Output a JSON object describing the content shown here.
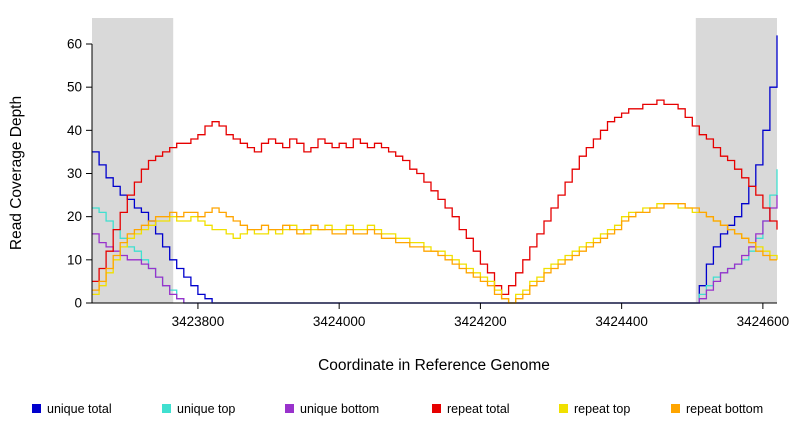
{
  "chart_data": {
    "type": "line",
    "title": "",
    "xlabel": "Coordinate in Reference Genome",
    "ylabel": "Read Coverage Depth",
    "xlim": [
      3423650,
      3424620
    ],
    "ylim": [
      0,
      60
    ],
    "x_ticks": [
      3423800,
      3424000,
      3424200,
      3424400,
      3424600
    ],
    "y_ticks": [
      0,
      10,
      20,
      30,
      40,
      50,
      60
    ],
    "x_start": 3423650,
    "x_step": 10,
    "line_style": "step",
    "grid": false,
    "legend_position": "bottom",
    "colors": {
      "background": "#ffffff",
      "shade": "#d9d9d9",
      "axis": "#000000"
    },
    "shaded_regions": [
      [
        3423650,
        3423765
      ],
      [
        3424505,
        3424620
      ]
    ],
    "series": [
      {
        "name": "unique total",
        "color": "#0000cd",
        "values": [
          35,
          32,
          29,
          27,
          25,
          24,
          22,
          21,
          19,
          16,
          13,
          10,
          8,
          6,
          4,
          2,
          1,
          0,
          0,
          0,
          0,
          0,
          0,
          0,
          0,
          0,
          0,
          0,
          0,
          0,
          0,
          0,
          0,
          0,
          0,
          0,
          0,
          0,
          0,
          0,
          0,
          0,
          0,
          0,
          0,
          0,
          0,
          0,
          0,
          0,
          0,
          0,
          0,
          0,
          0,
          0,
          0,
          0,
          0,
          0,
          0,
          0,
          0,
          0,
          0,
          0,
          0,
          0,
          0,
          0,
          0,
          0,
          0,
          0,
          0,
          0,
          0,
          0,
          0,
          0,
          0,
          0,
          0,
          0,
          0,
          0,
          4,
          9,
          13,
          16,
          18,
          20,
          23,
          27,
          32,
          40,
          50,
          62
        ]
      },
      {
        "name": "unique top",
        "color": "#40e0d0",
        "values": [
          22,
          21,
          19,
          17,
          15,
          13,
          12,
          10,
          8,
          6,
          4,
          3,
          1,
          0,
          0,
          0,
          0,
          0,
          0,
          0,
          0,
          0,
          0,
          0,
          0,
          0,
          0,
          0,
          0,
          0,
          0,
          0,
          0,
          0,
          0,
          0,
          0,
          0,
          0,
          0,
          0,
          0,
          0,
          0,
          0,
          0,
          0,
          0,
          0,
          0,
          0,
          0,
          0,
          0,
          0,
          0,
          0,
          0,
          0,
          0,
          0,
          0,
          0,
          0,
          0,
          0,
          0,
          0,
          0,
          0,
          0,
          0,
          0,
          0,
          0,
          0,
          0,
          0,
          0,
          0,
          0,
          0,
          0,
          0,
          0,
          0,
          2,
          4,
          6,
          7,
          8,
          9,
          10,
          12,
          15,
          19,
          25,
          31
        ]
      },
      {
        "name": "unique bottom",
        "color": "#9932cc",
        "values": [
          16,
          14,
          13,
          12,
          11,
          10,
          10,
          9,
          8,
          6,
          4,
          2,
          1,
          0,
          0,
          0,
          0,
          0,
          0,
          0,
          0,
          0,
          0,
          0,
          0,
          0,
          0,
          0,
          0,
          0,
          0,
          0,
          0,
          0,
          0,
          0,
          0,
          0,
          0,
          0,
          0,
          0,
          0,
          0,
          0,
          0,
          0,
          0,
          0,
          0,
          0,
          0,
          0,
          0,
          0,
          0,
          0,
          0,
          0,
          0,
          0,
          0,
          0,
          0,
          0,
          0,
          0,
          0,
          0,
          0,
          0,
          0,
          0,
          0,
          0,
          0,
          0,
          0,
          0,
          0,
          0,
          0,
          0,
          0,
          0,
          0,
          1,
          3,
          5,
          7,
          8,
          9,
          11,
          13,
          16,
          19,
          22,
          25
        ]
      },
      {
        "name": "repeat total",
        "color": "#e60000",
        "values": [
          5,
          8,
          12,
          17,
          21,
          25,
          28,
          31,
          33,
          34,
          35,
          36,
          37,
          37,
          38,
          39,
          41,
          42,
          41,
          39,
          38,
          37,
          36,
          35,
          37,
          38,
          37,
          36,
          38,
          37,
          35,
          36,
          38,
          37,
          36,
          37,
          36,
          38,
          37,
          36,
          37,
          36,
          35,
          34,
          33,
          31,
          30,
          28,
          26,
          24,
          22,
          20,
          17,
          15,
          12,
          9,
          7,
          4,
          2,
          4,
          7,
          10,
          13,
          16,
          19,
          22,
          25,
          28,
          31,
          34,
          36,
          38,
          40,
          42,
          43,
          44,
          45,
          45,
          46,
          46,
          47,
          46,
          46,
          45,
          43,
          41,
          39,
          38,
          36,
          34,
          33,
          31,
          29,
          27,
          25,
          22,
          19,
          17
        ]
      },
      {
        "name": "repeat top",
        "color": "#f0e000",
        "values": [
          2,
          4,
          7,
          10,
          13,
          15,
          16,
          17,
          18,
          19,
          19,
          20,
          19,
          19,
          20,
          19,
          18,
          17,
          17,
          16,
          15,
          16,
          17,
          16,
          16,
          17,
          16,
          17,
          18,
          17,
          16,
          17,
          17,
          18,
          17,
          17,
          18,
          17,
          17,
          18,
          17,
          16,
          16,
          15,
          15,
          14,
          14,
          13,
          12,
          12,
          11,
          10,
          9,
          8,
          7,
          6,
          5,
          3,
          1,
          0,
          2,
          3,
          5,
          6,
          8,
          9,
          10,
          11,
          12,
          13,
          14,
          15,
          16,
          17,
          18,
          20,
          21,
          21,
          22,
          22,
          23,
          23,
          23,
          22,
          22,
          21,
          21,
          20,
          19,
          18,
          17,
          16,
          15,
          14,
          13,
          12,
          11,
          10
        ]
      },
      {
        "name": "repeat bottom",
        "color": "#ffa500",
        "values": [
          3,
          5,
          8,
          11,
          14,
          16,
          17,
          18,
          19,
          20,
          20,
          21,
          20,
          21,
          21,
          20,
          21,
          22,
          21,
          20,
          19,
          18,
          17,
          17,
          18,
          17,
          17,
          18,
          17,
          16,
          17,
          18,
          17,
          17,
          16,
          16,
          17,
          16,
          16,
          17,
          16,
          15,
          15,
          14,
          14,
          13,
          13,
          12,
          12,
          11,
          10,
          9,
          8,
          7,
          6,
          5,
          4,
          2,
          1,
          0,
          1,
          2,
          4,
          5,
          7,
          8,
          9,
          10,
          11,
          12,
          13,
          14,
          15,
          16,
          17,
          19,
          20,
          21,
          21,
          22,
          22,
          23,
          23,
          23,
          22,
          22,
          21,
          20,
          19,
          18,
          17,
          16,
          15,
          14,
          12,
          11,
          10,
          10
        ]
      }
    ]
  }
}
